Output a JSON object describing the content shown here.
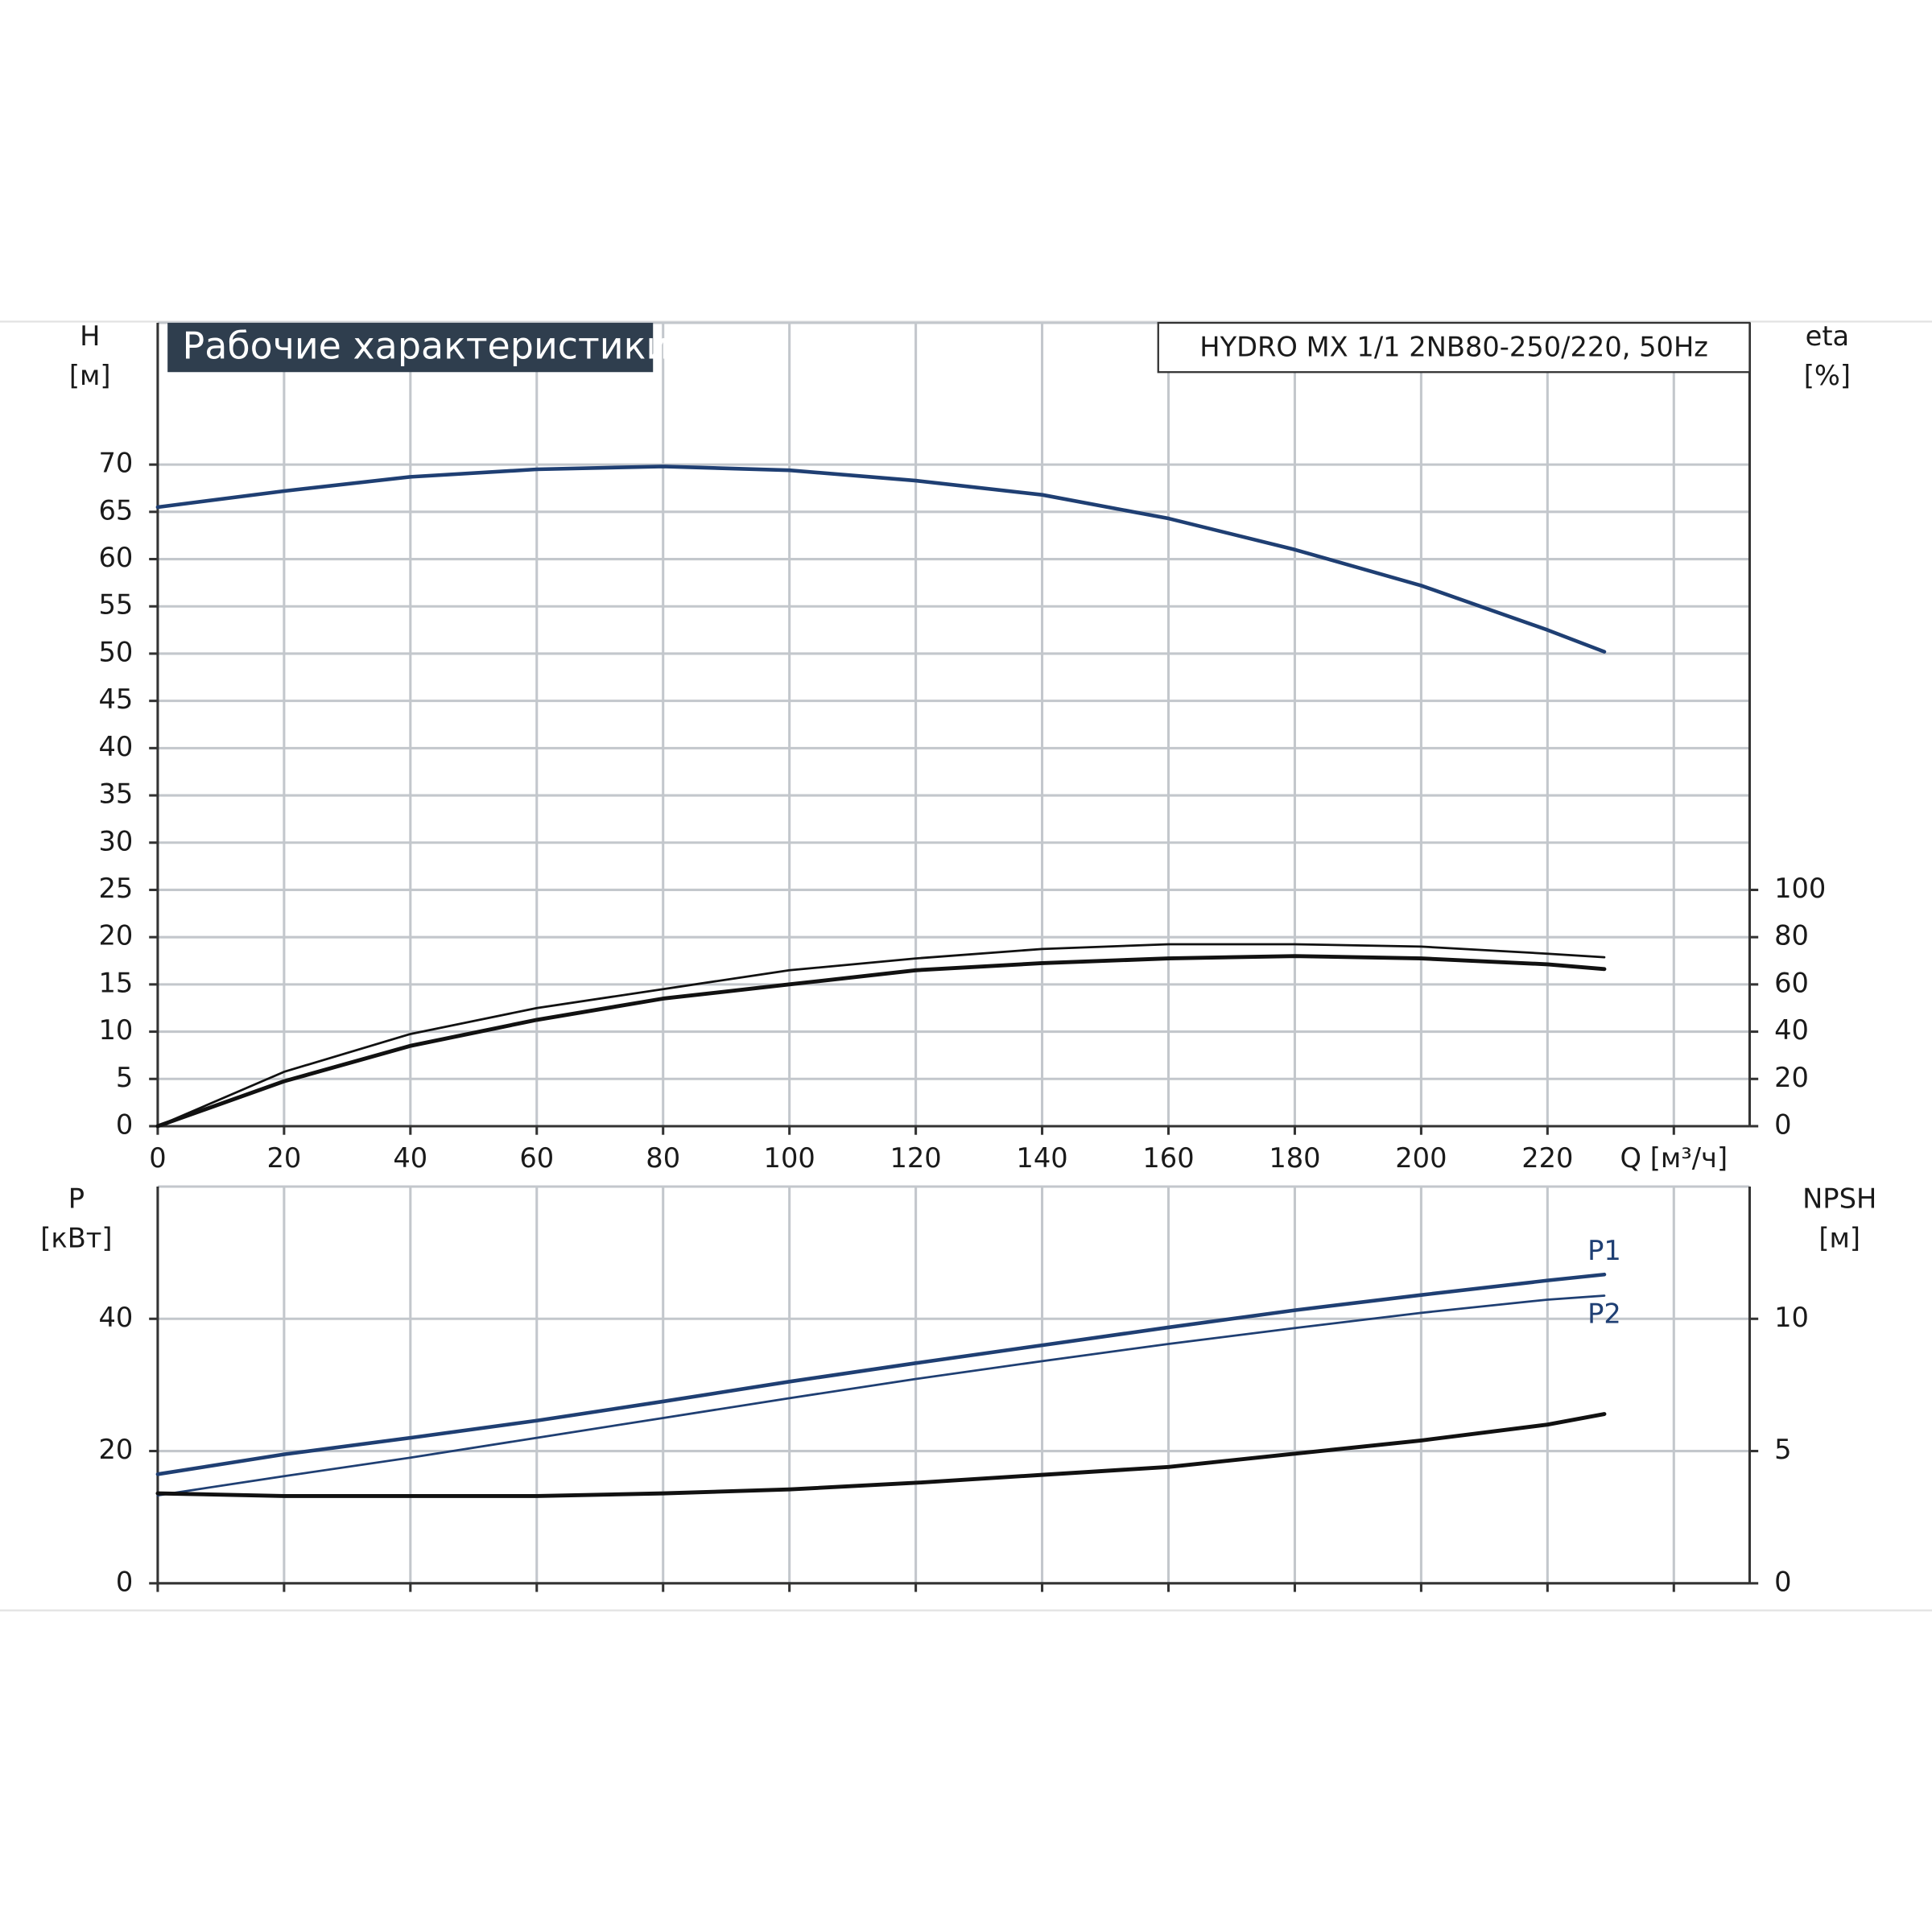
{
  "chart_data": [
    {
      "type": "line",
      "title": "Рабочие характеристики",
      "subtitle": "HYDRO MX 1/1 2NB80-250/220, 50Hz",
      "y_label": "H",
      "y_unit": "[м]",
      "y2_label": "eta",
      "y2_unit": "[%]",
      "x": [
        0,
        20,
        40,
        60,
        80,
        100,
        120,
        140,
        160,
        180,
        200,
        220,
        229
      ],
      "xlim": [
        0,
        252
      ],
      "xticks": [
        0,
        20,
        40,
        60,
        80,
        100,
        120,
        140,
        160,
        180,
        200,
        220,
        {
          "value": 240,
          "label": "Q [м³/ч]"
        }
      ],
      "ylim": [
        0,
        85
      ],
      "yticks": [
        0,
        5,
        10,
        15,
        20,
        25,
        30,
        35,
        40,
        45,
        50,
        55,
        60,
        65,
        70
      ],
      "y2lim": [
        0,
        340
      ],
      "y2ticks": [
        0,
        20,
        40,
        60,
        80,
        100
      ],
      "grid": true,
      "series": [
        {
          "color": "#1f3f73",
          "width": 3,
          "values": [
            65.5,
            67.2,
            68.7,
            69.5,
            69.8,
            69.4,
            68.3,
            66.8,
            64.3,
            61,
            57.2,
            52.5,
            50.2
          ]
        },
        {
          "color": "#111111",
          "width": 1.8,
          "axis": "y2",
          "values": [
            0,
            23,
            39,
            50,
            58,
            66,
            71,
            75,
            77,
            77,
            76,
            73,
            71.5
          ]
        },
        {
          "color": "#111111",
          "width": 3.2,
          "axis": "y2",
          "values": [
            0,
            19,
            34,
            45,
            54,
            60,
            66,
            69,
            71,
            72,
            71,
            68.5,
            66.5
          ]
        }
      ]
    },
    {
      "type": "line",
      "y_label": "P",
      "y_unit": "[кВт]",
      "y2_label": "NPSH",
      "y2_unit": "[м]",
      "x": [
        0,
        20,
        40,
        60,
        80,
        100,
        120,
        140,
        160,
        180,
        200,
        220,
        229
      ],
      "xlim": [
        0,
        252
      ],
      "ylim": [
        0,
        60
      ],
      "yticks": [
        0,
        20,
        40
      ],
      "y2lim": [
        0,
        15
      ],
      "y2ticks": [
        0,
        5,
        10
      ],
      "grid": true,
      "series": [
        {
          "name": "P1",
          "color": "#1f3f73",
          "width": 3,
          "values": [
            16.5,
            19.5,
            22,
            24.6,
            27.5,
            30.5,
            33.3,
            36,
            38.7,
            41.3,
            43.6,
            45.8,
            46.7
          ]
        },
        {
          "name": "P2",
          "color": "#1f3f73",
          "width": 1.8,
          "values": [
            13.3,
            16.2,
            19,
            22,
            25,
            28,
            30.9,
            33.6,
            36.2,
            38.6,
            40.9,
            42.9,
            43.5
          ]
        },
        {
          "color": "#111111",
          "width": 3.2,
          "axis": "y2",
          "values": [
            3.4,
            3.3,
            3.3,
            3.3,
            3.4,
            3.55,
            3.8,
            4.1,
            4.4,
            4.9,
            5.4,
            6.0,
            6.4
          ]
        }
      ]
    }
  ]
}
